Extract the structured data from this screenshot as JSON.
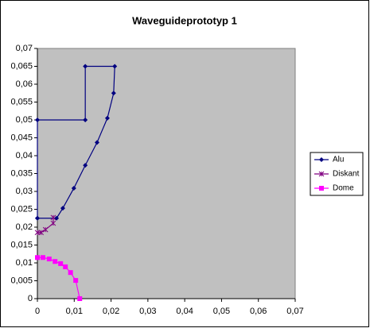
{
  "chart_data": {
    "type": "scatter",
    "title": "Waveguideprototyp 1",
    "xlim": [
      0,
      0.07
    ],
    "ylim": [
      0,
      0.07
    ],
    "xticks": [
      0,
      {
        "value": 0.01,
        "label": "0,01"
      },
      {
        "value": 0.02,
        "label": "0,02"
      },
      {
        "value": 0.03,
        "label": "0,03"
      },
      {
        "value": 0.04,
        "label": "0,04"
      },
      {
        "value": 0.05,
        "label": "0,05"
      },
      {
        "value": 0.06,
        "label": "0,06"
      },
      {
        "value": 0.07,
        "label": "0,07"
      }
    ],
    "yticks": [
      0,
      {
        "value": 0.005,
        "label": "0,005"
      },
      {
        "value": 0.01,
        "label": "0,01"
      },
      {
        "value": 0.015,
        "label": "0,015"
      },
      {
        "value": 0.02,
        "label": "0,02"
      },
      {
        "value": 0.025,
        "label": "0,025"
      },
      {
        "value": 0.03,
        "label": "0,03"
      },
      {
        "value": 0.035,
        "label": "0,035"
      },
      {
        "value": 0.04,
        "label": "0,04"
      },
      {
        "value": 0.045,
        "label": "0,045"
      },
      {
        "value": 0.05,
        "label": "0,05"
      },
      {
        "value": 0.055,
        "label": "0,055"
      },
      {
        "value": 0.06,
        "label": "0,06"
      },
      {
        "value": 0.065,
        "label": "0,065"
      },
      {
        "value": 0.07,
        "label": "0,07"
      }
    ],
    "legend": "right",
    "series": [
      {
        "name": "Alu",
        "color": "#000080",
        "marker": "diamond",
        "x": [
          0,
          0,
          0.013,
          0.013,
          0.021,
          0.0207,
          0.019,
          0.0162,
          0.013,
          0.0099,
          0.0069,
          0.0052,
          0
        ],
        "values": [
          0.0225,
          0.05,
          0.05,
          0.065,
          0.065,
          0.0575,
          0.0505,
          0.0437,
          0.0373,
          0.0309,
          0.0253,
          0.0225,
          0.0225
        ]
      },
      {
        "name": "Diskant",
        "color": "#800080",
        "marker": "star",
        "x": [
          0,
          0.001,
          0.0022,
          0.0043,
          0.0043
        ],
        "values": [
          0.0185,
          0.0185,
          0.0193,
          0.0211,
          0.0227
        ]
      },
      {
        "name": "Dome",
        "color": "#ff00ff",
        "marker": "square",
        "x": [
          0,
          0.0015,
          0.0032,
          0.0048,
          0.0063,
          0.0076,
          0.009,
          0.0104,
          0.0115
        ],
        "values": [
          0.0115,
          0.0115,
          0.0111,
          0.0104,
          0.0098,
          0.0089,
          0.0073,
          0.0051,
          0
        ]
      }
    ]
  }
}
